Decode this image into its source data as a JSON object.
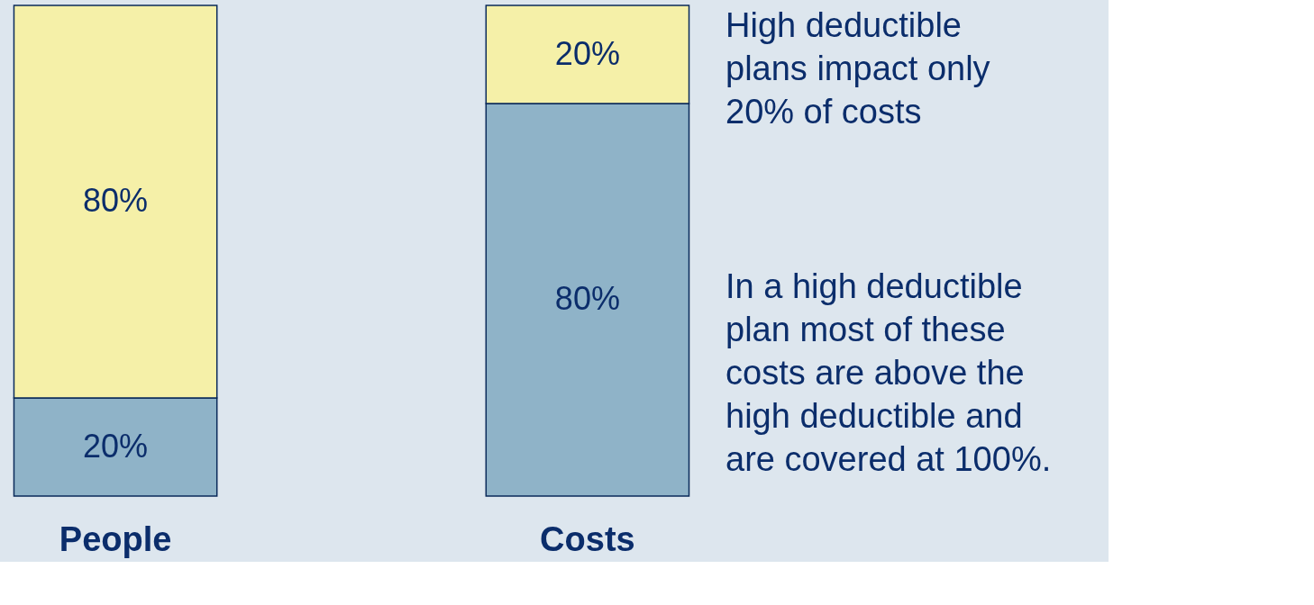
{
  "chart_data": {
    "type": "bar",
    "stacked": true,
    "categories": [
      "People",
      "Costs"
    ],
    "series": [
      {
        "color": "#8fb3c8",
        "values": [
          20,
          80
        ],
        "value_labels": [
          "20%",
          "80%"
        ]
      },
      {
        "color": "#f5f0a8",
        "values": [
          80,
          20
        ],
        "value_labels": [
          "80%",
          "20%"
        ]
      }
    ],
    "grid": false,
    "annotations": [
      "High deductible plans impact only 20% of costs",
      "In a high deductible plan most of these costs are above the high deductible and are covered at 100%."
    ]
  }
}
